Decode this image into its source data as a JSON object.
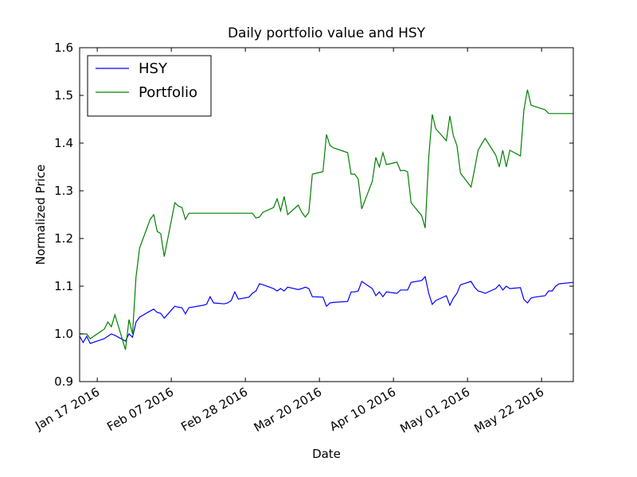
{
  "chart_data": {
    "type": "line",
    "title": "Daily portfolio value and HSY",
    "x_label": "Date",
    "y_label": "Normalized Price",
    "x": [
      "2016-01-12",
      "2016-01-13",
      "2016-01-14",
      "2016-01-15",
      "2016-01-19",
      "2016-01-20",
      "2016-01-21",
      "2016-01-22",
      "2016-01-25",
      "2016-01-26",
      "2016-01-27",
      "2016-01-28",
      "2016-01-29",
      "2016-02-01",
      "2016-02-02",
      "2016-02-03",
      "2016-02-04",
      "2016-02-05",
      "2016-02-08",
      "2016-02-09",
      "2016-02-10",
      "2016-02-11",
      "2016-02-12",
      "2016-02-16",
      "2016-02-17",
      "2016-02-18",
      "2016-02-19",
      "2016-02-22",
      "2016-02-23",
      "2016-02-24",
      "2016-02-25",
      "2016-02-26",
      "2016-02-29",
      "2016-03-01",
      "2016-03-02",
      "2016-03-03",
      "2016-03-04",
      "2016-03-07",
      "2016-03-08",
      "2016-03-09",
      "2016-03-10",
      "2016-03-11",
      "2016-03-14",
      "2016-03-15",
      "2016-03-16",
      "2016-03-17",
      "2016-03-18",
      "2016-03-21",
      "2016-03-22",
      "2016-03-23",
      "2016-03-24",
      "2016-03-28",
      "2016-03-29",
      "2016-03-30",
      "2016-03-31",
      "2016-04-01",
      "2016-04-04",
      "2016-04-05",
      "2016-04-06",
      "2016-04-07",
      "2016-04-08",
      "2016-04-11",
      "2016-04-12",
      "2016-04-13",
      "2016-04-14",
      "2016-04-15",
      "2016-04-18",
      "2016-04-19",
      "2016-04-20",
      "2016-04-21",
      "2016-04-22",
      "2016-04-25",
      "2016-04-26",
      "2016-04-27",
      "2016-04-28",
      "2016-04-29",
      "2016-05-02",
      "2016-05-03",
      "2016-05-04",
      "2016-05-05",
      "2016-05-06",
      "2016-05-09",
      "2016-05-10",
      "2016-05-11",
      "2016-05-12",
      "2016-05-13",
      "2016-05-16",
      "2016-05-17",
      "2016-05-18",
      "2016-05-19",
      "2016-05-20",
      "2016-05-23",
      "2016-05-24",
      "2016-05-25",
      "2016-05-26",
      "2016-05-27",
      "2016-05-31"
    ],
    "series": [
      {
        "name": "HSY",
        "color": "#0000ff",
        "values": [
          0.995,
          0.982,
          0.995,
          0.98,
          0.99,
          0.995,
          1.0,
          0.997,
          0.985,
          1.0,
          0.993,
          1.025,
          1.035,
          1.048,
          1.052,
          1.045,
          1.043,
          1.033,
          1.058,
          1.056,
          1.055,
          1.042,
          1.055,
          1.06,
          1.062,
          1.078,
          1.065,
          1.063,
          1.065,
          1.07,
          1.088,
          1.073,
          1.077,
          1.085,
          1.09,
          1.105,
          1.103,
          1.095,
          1.09,
          1.095,
          1.09,
          1.098,
          1.093,
          1.095,
          1.098,
          1.095,
          1.078,
          1.077,
          1.058,
          1.065,
          1.066,
          1.068,
          1.088,
          1.088,
          1.09,
          1.11,
          1.095,
          1.08,
          1.088,
          1.078,
          1.088,
          1.085,
          1.092,
          1.092,
          1.092,
          1.108,
          1.112,
          1.12,
          1.085,
          1.062,
          1.07,
          1.08,
          1.06,
          1.075,
          1.085,
          1.103,
          1.11,
          1.098,
          1.09,
          1.088,
          1.085,
          1.095,
          1.103,
          1.092,
          1.1,
          1.095,
          1.097,
          1.072,
          1.065,
          1.075,
          1.077,
          1.08,
          1.09,
          1.09,
          1.1,
          1.105,
          1.108
        ]
      },
      {
        "name": "Portfolio",
        "color": "#008000",
        "values": [
          1.0,
          1.0,
          1.0,
          0.99,
          1.01,
          1.025,
          1.015,
          1.04,
          0.967,
          1.03,
          1.0,
          1.12,
          1.18,
          1.24,
          1.25,
          1.215,
          1.21,
          1.162,
          1.275,
          1.268,
          1.265,
          1.24,
          1.253,
          1.253,
          1.253,
          1.253,
          1.253,
          1.253,
          1.253,
          1.253,
          1.253,
          1.253,
          1.253,
          1.253,
          1.243,
          1.245,
          1.255,
          1.265,
          1.283,
          1.258,
          1.288,
          1.25,
          1.27,
          1.255,
          1.245,
          1.255,
          1.335,
          1.34,
          1.418,
          1.395,
          1.39,
          1.38,
          1.335,
          1.335,
          1.325,
          1.262,
          1.32,
          1.37,
          1.35,
          1.38,
          1.355,
          1.36,
          1.342,
          1.343,
          1.34,
          1.275,
          1.248,
          1.222,
          1.37,
          1.46,
          1.43,
          1.405,
          1.457,
          1.415,
          1.395,
          1.337,
          1.308,
          1.345,
          1.385,
          1.398,
          1.41,
          1.375,
          1.35,
          1.385,
          1.35,
          1.385,
          1.373,
          1.47,
          1.512,
          1.48,
          1.477,
          1.47,
          1.462,
          1.462,
          1.462,
          1.462,
          1.462
        ]
      }
    ],
    "xlim": [
      "2016-01-12",
      "2016-05-31"
    ],
    "xticks": [
      {
        "value": "2016-01-17",
        "label": "Jan 17 2016"
      },
      {
        "value": "2016-02-07",
        "label": "Feb 07 2016"
      },
      {
        "value": "2016-02-28",
        "label": "Feb 28 2016"
      },
      {
        "value": "2016-03-20",
        "label": "Mar 20 2016"
      },
      {
        "value": "2016-04-10",
        "label": "Apr 10 2016"
      },
      {
        "value": "2016-05-01",
        "label": "May 01 2016"
      },
      {
        "value": "2016-05-22",
        "label": "May 22 2016"
      }
    ],
    "ylim": [
      0.9,
      1.6
    ],
    "yticks": [
      0.9,
      {
        "value": 1,
        "label": "1.0"
      },
      1.1,
      1.2,
      1.3,
      1.4,
      1.5,
      1.6
    ],
    "grid": false,
    "legend": "upper left"
  }
}
